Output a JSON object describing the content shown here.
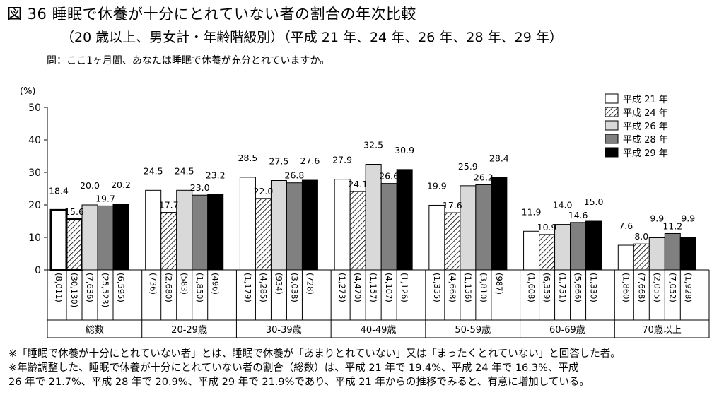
{
  "title": "図 36  睡眠で休養が十分にとれていない者の割合の年次比較",
  "subtitle": "（20 歳以上、男女計・年齢階級別）（平成 21 年、24 年、26 年、28 年、29 年）",
  "question": "問：ここ1ヶ月間、あなたは睡眠で休養が充分とれていますか。",
  "notes": [
    "※「睡眠で休養が十分にとれていない者」とは、睡眠で休養が「あまりとれていない」又は「まったくとれていない」と回答した者。",
    "※年齢調整した、睡眠で休養が十分にとれていない者の割合（総数）は、平成 21 年で 19.4%、平成 24 年で 16.3%、平成",
    "26 年で 21.7%、平成 28 年で 20.9%、平成 29 年で 21.9%であり、平成 21 年からの推移でみると、有意に増加している。"
  ],
  "chart_data": {
    "type": "bar",
    "ylabel": "(%)",
    "ylim": [
      0,
      50
    ],
    "yticks": [
      0,
      10,
      20,
      30,
      40,
      50
    ],
    "grid": false,
    "legend_position": "top-right",
    "categories": [
      "総数",
      "20-29歳",
      "30-39歳",
      "40-49歳",
      "50-59歳",
      "60-69歳",
      "70歳以上"
    ],
    "series": [
      {
        "name": "平成 21 年",
        "fill": "#ffffff",
        "pattern": "none",
        "values": [
          18.4,
          24.5,
          28.5,
          27.9,
          19.9,
          11.9,
          7.6
        ],
        "n": [
          "(8,011)",
          "(736)",
          "(1,179)",
          "(1,273)",
          "(1,355)",
          "(1,608)",
          "(1,860)"
        ]
      },
      {
        "name": "平成 24 年",
        "fill": "#ffffff",
        "pattern": "hatch",
        "values": [
          15.6,
          17.7,
          22.0,
          24.1,
          17.6,
          10.9,
          8.0
        ],
        "n": [
          "(30,130)",
          "(2,680)",
          "(4,285)",
          "(4,470)",
          "(4,668)",
          "(6,359)",
          "(7,668)"
        ]
      },
      {
        "name": "平成 26 年",
        "fill": "#d9d9d9",
        "pattern": "none",
        "values": [
          20.0,
          24.5,
          27.5,
          32.5,
          25.9,
          14.0,
          9.9
        ],
        "n": [
          "(7,636)",
          "(583)",
          "(934)",
          "(1,157)",
          "(1,156)",
          "(1,751)",
          "(2,055)"
        ]
      },
      {
        "name": "平成 28 年",
        "fill": "#808080",
        "pattern": "none",
        "values": [
          19.7,
          23.0,
          26.8,
          26.6,
          26.2,
          14.6,
          11.2
        ],
        "n": [
          "(25,523)",
          "(1,850)",
          "(3,038)",
          "(4,107)",
          "(3,810)",
          "(5,666)",
          "(7,052)"
        ]
      },
      {
        "name": "平成 29 年",
        "fill": "#000000",
        "pattern": "none",
        "values": [
          20.2,
          23.2,
          27.6,
          30.9,
          28.4,
          15.0,
          9.9
        ],
        "n": [
          "(6,595)",
          "(496)",
          "(728)",
          "(1,126)",
          "(987)",
          "(1,330)",
          "(1,928)"
        ]
      }
    ]
  }
}
